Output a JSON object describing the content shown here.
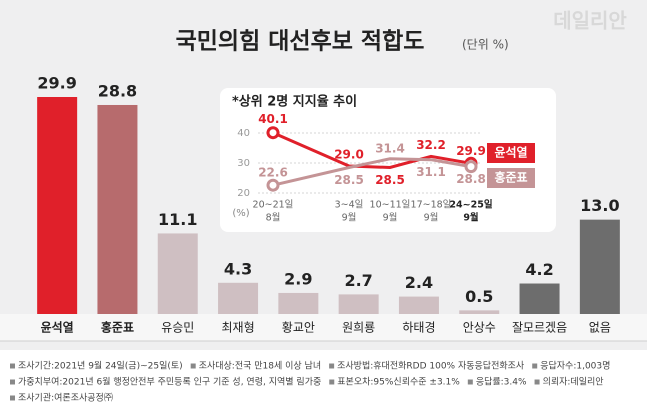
{
  "watermark": "데일리안",
  "chart_data": [
    {
      "type": "bar",
      "title": "국민의힘 대선후보 적합도",
      "unit": "(단위 %)",
      "categories": [
        "윤석열",
        "홍준표",
        "유승민",
        "최재형",
        "황교안",
        "원희룡",
        "하태경",
        "안상수",
        "잘모르겠음",
        "없음"
      ],
      "values": [
        29.9,
        28.8,
        11.1,
        4.3,
        2.9,
        2.7,
        2.4,
        0.5,
        4.2,
        13.0
      ],
      "value_labels": [
        "29.9",
        "28.8",
        "11.1",
        "4.3",
        "2.9",
        "2.7",
        "2.4",
        "0.5",
        "4.2",
        "13.0"
      ],
      "colors": [
        "#e0202a",
        "#b76b6d",
        "#cfbfc2",
        "#cfbfc2",
        "#cfbfc2",
        "#cfbfc2",
        "#cfbfc2",
        "#cfbfc2",
        "#6d6d6d",
        "#6d6d6d"
      ]
    },
    {
      "type": "line",
      "title": "*상위 2명 지지율 추이",
      "ylabel": "(%)",
      "categories": [
        [
          "20~21일",
          "8월"
        ],
        [
          "3~4일",
          "9월"
        ],
        [
          "10~11일",
          "9월"
        ],
        [
          "17~18일",
          "9월"
        ],
        [
          "24~25일",
          "9월"
        ]
      ],
      "ylim": [
        20,
        40
      ],
      "yticks": [
        20,
        30,
        40
      ],
      "grid": true,
      "series": [
        {
          "name": "윤석열",
          "color": "#e0202a",
          "values": [
            40.1,
            29.0,
            28.5,
            32.2,
            29.9
          ],
          "value_labels": [
            "40.1",
            "29.0",
            "28.5",
            "32.2",
            "29.9"
          ]
        },
        {
          "name": "홍준표",
          "color": "#c49496",
          "values": [
            22.6,
            28.5,
            31.4,
            31.1,
            28.8
          ],
          "value_labels": [
            "22.6",
            "28.5",
            "31.4",
            "31.1",
            "28.8"
          ]
        }
      ]
    }
  ],
  "notes": [
    [
      "조사기간:2021년 9월 24일(금)~25일(토)",
      "조사대상:전국 만18세 이상 남녀",
      "조사방법:휴대전화RDD 100% 자동응답전화조사",
      "응답자수:1,003명"
    ],
    [
      "가중치부여:2021년 6월 행정안전부 주민등록 인구 기준 성, 연령, 지역별 림가중",
      "표본오차:95%신뢰수준 ±3.1%",
      "응답률:3.4%",
      "의뢰자:데일리안"
    ],
    [
      "조사기관:여론조사공정㈜"
    ]
  ]
}
